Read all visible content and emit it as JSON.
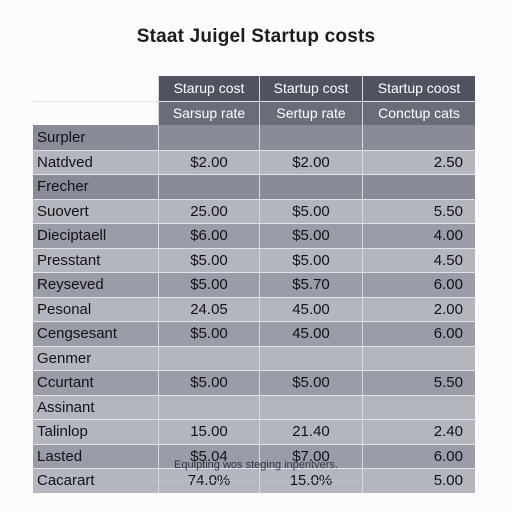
{
  "title": "Staat Juigel Startup costs",
  "columns": {
    "row1": [
      "Starup cost",
      "Startup cost",
      "Startup coost"
    ],
    "row2": [
      "Sarsup rate",
      "Sertup rate",
      "Conctup cats"
    ]
  },
  "rows": [
    {
      "label": "Surpler",
      "v1": "",
      "v2": "",
      "v3": ""
    },
    {
      "label": "Natdved",
      "v1": "$2.00",
      "v2": "$2.00",
      "v3": "2.50"
    },
    {
      "label": "Frecher",
      "v1": "",
      "v2": "",
      "v3": ""
    },
    {
      "label": "Suovert",
      "v1": "25.00",
      "v2": "$5.00",
      "v3": "5.50"
    },
    {
      "label": "Dieciptaell",
      "v1": "$6.00",
      "v2": "$5.00",
      "v3": "4.00"
    },
    {
      "label": "Presstant",
      "v1": "$5.00",
      "v2": "$5.00",
      "v3": "4.50"
    },
    {
      "label": "Reyseved",
      "v1": "$5.00",
      "v2": "$5.70",
      "v3": "6.00"
    },
    {
      "label": "Pesonal",
      "v1": "24.05",
      "v2": "45.00",
      "v3": "2.00"
    },
    {
      "label": "Cengsesant",
      "v1": "$5.00",
      "v2": "45.00",
      "v3": "6.00"
    },
    {
      "label": "Genmer",
      "v1": "",
      "v2": "",
      "v3": ""
    },
    {
      "label": "Ccurtant",
      "v1": "$5.00",
      "v2": "$5.00",
      "v3": "5.50"
    },
    {
      "label": "Assinant",
      "v1": "",
      "v2": "",
      "v3": ""
    },
    {
      "label": "Talinlop",
      "v1": "15.00",
      "v2": "21.40",
      "v3": "2.40"
    },
    {
      "label": "Lasted",
      "v1": "$5.04",
      "v2": "$7.00",
      "v3": "6.00"
    },
    {
      "label": "Cacarart",
      "v1": "74.0%",
      "v2": "15.0%",
      "v3": "5.00"
    }
  ],
  "footnote": "Equipting wos steging inpentvers."
}
